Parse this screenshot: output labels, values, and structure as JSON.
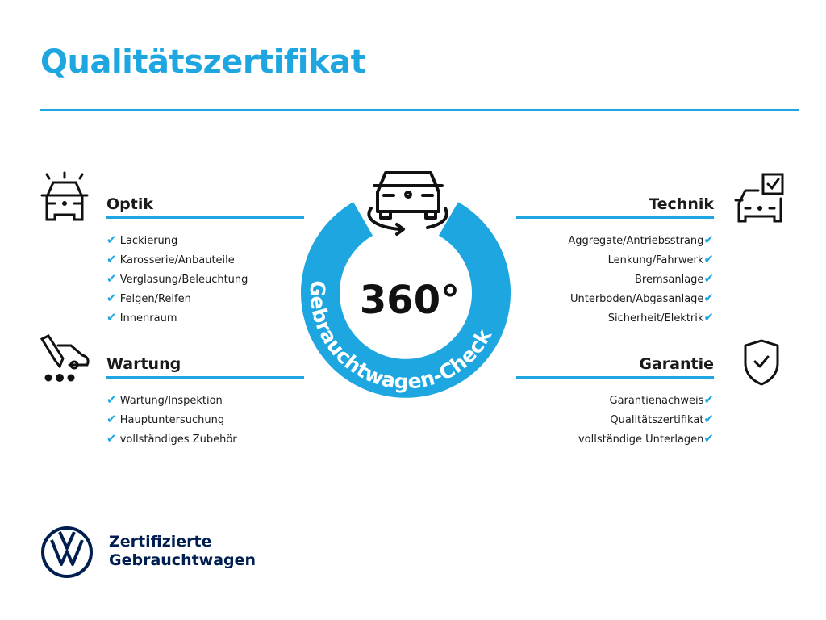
{
  "title": "Qualitätszertifikat",
  "colors": {
    "accent": "#1ea6e0",
    "brand": "#001e50"
  },
  "center": {
    "degrees": "360°",
    "label": "Gebrauchtwagen-Check",
    "icon": "car-rotate-icon"
  },
  "sections": {
    "optik": {
      "title": "Optik",
      "icon": "car-lights-icon",
      "items": [
        "Lackierung",
        "Karosserie/Anbauteile",
        "Verglasung/Beleuchtung",
        "Felgen/Reifen",
        "Innenraum"
      ]
    },
    "wartung": {
      "title": "Wartung",
      "icon": "car-service-icon",
      "items": [
        "Wartung/Inspektion",
        "Hauptuntersuchung",
        "vollständiges Zubehör"
      ]
    },
    "technik": {
      "title": "Technik",
      "icon": "car-checklist-icon",
      "items": [
        "Aggregate/Antriebsstrang",
        "Lenkung/Fahrwerk",
        "Bremsanlage",
        "Unterboden/Abgasanlage",
        "Sicherheit/Elektrik"
      ]
    },
    "garantie": {
      "title": "Garantie",
      "icon": "shield-check-icon",
      "items": [
        "Garantienachweis",
        "Qualitätszertifikat",
        "vollständige Unterlagen"
      ]
    }
  },
  "check": "✔",
  "brand": {
    "line1": "Zertifizierte",
    "line2": "Gebrauchtwagen",
    "logo": "vw-logo"
  }
}
